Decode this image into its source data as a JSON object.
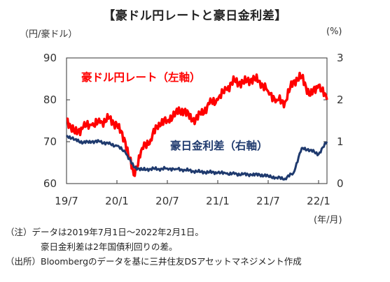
{
  "title": "【豪ドル円レートと豪日金利差】",
  "units": {
    "left": "（円/豪ドル）",
    "right": "(%)",
    "x": "(年/月)"
  },
  "notes": {
    "note1": "（注）データは2019年7月1日～2022年2月1日。",
    "note2": "豪日金利差は2年国債利回りの差。",
    "source": "（出所）Bloombergのデータを基に三井住友DSアセットマネジメント作成"
  },
  "chart_data": {
    "type": "line",
    "title": "【豪ドル円レートと豪日金利差】",
    "x_tick_labels": [
      "19/7",
      "20/1",
      "20/7",
      "21/1",
      "21/7",
      "22/1"
    ],
    "x_range": [
      "2019-07",
      "2022-02"
    ],
    "y_left": {
      "label": "（円/豪ドル）",
      "ylim": [
        60,
        90
      ],
      "ticks": [
        "60",
        "70",
        "80",
        "90"
      ]
    },
    "y_right": {
      "label": "(%)",
      "ylim": [
        0,
        3
      ],
      "ticks": [
        "0",
        "1",
        "2",
        "3"
      ]
    },
    "grid": false,
    "series": [
      {
        "name": "豪ドル円レート（左軸）",
        "axis": "left",
        "color": "#ff0000",
        "x": [
          "2019-07",
          "2019-08",
          "2019-09",
          "2019-10",
          "2019-11",
          "2019-12",
          "2020-01",
          "2020-02",
          "2020-03",
          "2020-04",
          "2020-05",
          "2020-06",
          "2020-07",
          "2020-08",
          "2020-09",
          "2020-10",
          "2020-11",
          "2020-12",
          "2021-01",
          "2021-02",
          "2021-03",
          "2021-04",
          "2021-05",
          "2021-06",
          "2021-07",
          "2021-08",
          "2021-09",
          "2021-10",
          "2021-11",
          "2021-12",
          "2022-01",
          "2022-02"
        ],
        "values": [
          75.5,
          72.0,
          73.5,
          74.0,
          74.5,
          75.5,
          74.0,
          70.0,
          62.0,
          68.5,
          70.5,
          74.5,
          75.0,
          77.0,
          77.5,
          75.0,
          76.5,
          79.0,
          80.0,
          82.5,
          84.5,
          84.0,
          85.0,
          84.5,
          82.0,
          80.0,
          79.5,
          84.5,
          85.5,
          81.0,
          83.5,
          80.0
        ]
      },
      {
        "name": "豪日金利差（右軸）",
        "axis": "right",
        "color": "#1f3a6e",
        "x": [
          "2019-07",
          "2019-08",
          "2019-09",
          "2019-10",
          "2019-11",
          "2019-12",
          "2020-01",
          "2020-02",
          "2020-03",
          "2020-04",
          "2020-05",
          "2020-06",
          "2020-07",
          "2020-08",
          "2020-09",
          "2020-10",
          "2020-11",
          "2020-12",
          "2021-01",
          "2021-02",
          "2021-03",
          "2021-04",
          "2021-05",
          "2021-06",
          "2021-07",
          "2021-08",
          "2021-09",
          "2021-10",
          "2021-11",
          "2021-12",
          "2022-01",
          "2022-02"
        ],
        "values": [
          1.15,
          1.05,
          0.98,
          1.0,
          1.0,
          0.95,
          0.9,
          0.75,
          0.4,
          0.33,
          0.35,
          0.35,
          0.36,
          0.35,
          0.33,
          0.3,
          0.28,
          0.27,
          0.26,
          0.24,
          0.23,
          0.22,
          0.21,
          0.21,
          0.18,
          0.14,
          0.12,
          0.25,
          0.85,
          0.8,
          0.7,
          1.0
        ]
      }
    ],
    "annotations": [
      "豪ドル円レート（左軸）",
      "豪日金利差（右軸）"
    ]
  }
}
